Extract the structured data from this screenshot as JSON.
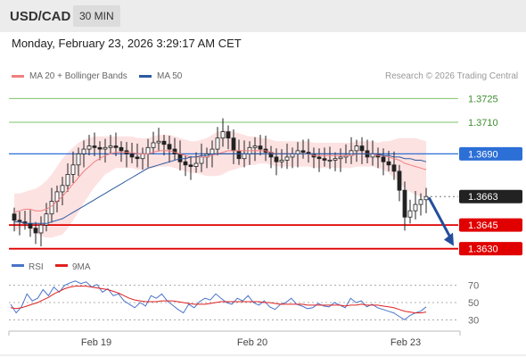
{
  "header": {
    "symbol": "USD/CAD",
    "timeframe": "30 MIN"
  },
  "datetime": "Monday, February 23, 2026 3:29:17 AM CET",
  "legend": {
    "ma20": {
      "label": "MA 20 + Bollinger Bands",
      "color": "#f08080"
    },
    "ma50": {
      "label": "MA 50",
      "color": "#2c5aa0"
    }
  },
  "credit": "Research © 2026 Trading Central",
  "chart_data": {
    "type": "candlestick",
    "price_ylim": [
      1.3627,
      1.3732
    ],
    "levels": [
      {
        "value": 1.3725,
        "label": "1.3725",
        "kind": "resistance-green"
      },
      {
        "value": 1.371,
        "label": "1.3710",
        "kind": "resistance-green"
      },
      {
        "value": 1.369,
        "label": "1.3690",
        "kind": "pivot-blue"
      },
      {
        "value": 1.3663,
        "label": "1.3663",
        "kind": "current"
      },
      {
        "value": 1.3645,
        "label": "1.3645",
        "kind": "support-red"
      },
      {
        "value": 1.363,
        "label": "1.3630",
        "kind": "support-red"
      }
    ],
    "arrow": {
      "from": 1.3663,
      "to": 1.363
    },
    "x_ticks": [
      "Feb 19",
      "Feb 20",
      "Feb 23"
    ],
    "closes": [
      1.3648,
      1.3647,
      1.3646,
      1.3643,
      1.364,
      1.3645,
      1.3652,
      1.366,
      1.3666,
      1.367,
      1.3677,
      1.3683,
      1.369,
      1.3693,
      1.3695,
      1.3694,
      1.3693,
      1.3694,
      1.3695,
      1.3694,
      1.3692,
      1.369,
      1.3688,
      1.3687,
      1.369,
      1.3694,
      1.3697,
      1.3698,
      1.3696,
      1.3693,
      1.369,
      1.3685,
      1.3683,
      1.3682,
      1.3684,
      1.3688,
      1.369,
      1.3693,
      1.37,
      1.3704,
      1.37,
      1.3692,
      1.3687,
      1.369,
      1.3694,
      1.3695,
      1.3693,
      1.3691,
      1.3688,
      1.3685,
      1.3686,
      1.3688,
      1.369,
      1.3692,
      1.3691,
      1.369,
      1.3688,
      1.3687,
      1.3686,
      1.3686,
      1.3687,
      1.3688,
      1.3689,
      1.3692,
      1.3695,
      1.3692,
      1.3688,
      1.369,
      1.3688,
      1.3685,
      1.3683,
      1.3679,
      1.3667,
      1.365,
      1.3654,
      1.3658,
      1.3661,
      1.3663
    ],
    "ma20": [
      1.3653,
      1.3654,
      1.3655,
      1.3655,
      1.3654,
      1.3654,
      1.3655,
      1.3657,
      1.366,
      1.3663,
      1.3667,
      1.3671,
      1.3675,
      1.3679,
      1.3682,
      1.3685,
      1.3687,
      1.3689,
      1.369,
      1.3691,
      1.3691,
      1.3691,
      1.3691,
      1.369,
      1.369,
      1.369,
      1.3691,
      1.3692,
      1.3692,
      1.3692,
      1.3691,
      1.369,
      1.3689,
      1.3688,
      1.3688,
      1.3688,
      1.3688,
      1.3689,
      1.369,
      1.3691,
      1.3692,
      1.3692,
      1.3692,
      1.3692,
      1.3692,
      1.3692,
      1.3692,
      1.3692,
      1.3691,
      1.369,
      1.369,
      1.369,
      1.369,
      1.369,
      1.369,
      1.369,
      1.3689,
      1.3689,
      1.3689,
      1.3689,
      1.3689,
      1.3689,
      1.3689,
      1.3689,
      1.369,
      1.369,
      1.369,
      1.369,
      1.3689,
      1.3689,
      1.3688,
      1.3687,
      1.3686,
      1.3684,
      1.3683,
      1.3682,
      1.3681,
      1.368
    ],
    "ma50": [
      1.3647,
      1.3647,
      1.3646,
      1.3646,
      1.3646,
      1.3646,
      1.3646,
      1.3647,
      1.3648,
      1.3649,
      1.3651,
      1.3653,
      1.3655,
      1.3657,
      1.3659,
      1.3661,
      1.3663,
      1.3665,
      1.3667,
      1.3669,
      1.3671,
      1.3673,
      1.3675,
      1.3677,
      1.3679,
      1.3681,
      1.3682,
      1.3683,
      1.3684,
      1.3685,
      1.3686,
      1.3687,
      1.3687,
      1.3688,
      1.3688,
      1.3689,
      1.3689,
      1.369,
      1.369,
      1.369,
      1.369,
      1.369,
      1.369,
      1.369,
      1.369,
      1.369,
      1.369,
      1.369,
      1.369,
      1.369,
      1.369,
      1.369,
      1.369,
      1.369,
      1.369,
      1.369,
      1.369,
      1.369,
      1.369,
      1.369,
      1.369,
      1.369,
      1.369,
      1.369,
      1.369,
      1.369,
      1.369,
      1.369,
      1.369,
      1.3689,
      1.3689,
      1.3688,
      1.3688,
      1.3687,
      1.3687,
      1.3686,
      1.3686,
      1.3685
    ],
    "band_width": [
      0.0012,
      0.0011,
      0.0011,
      0.0012,
      0.0014,
      0.0016,
      0.0018,
      0.002,
      0.0022,
      0.0024,
      0.0024,
      0.0023,
      0.0022,
      0.002,
      0.0018,
      0.0016,
      0.0014,
      0.0012,
      0.0011,
      0.001,
      0.001,
      0.001,
      0.001,
      0.001,
      0.001,
      0.001,
      0.001,
      0.001,
      0.001,
      0.001,
      0.001,
      0.001,
      0.001,
      0.001,
      0.001,
      0.0011,
      0.0012,
      0.0013,
      0.0014,
      0.0014,
      0.0013,
      0.0012,
      0.0011,
      0.001,
      0.0009,
      0.0009,
      0.0008,
      0.0008,
      0.0008,
      0.0008,
      0.0008,
      0.0008,
      0.0008,
      0.0008,
      0.0008,
      0.0008,
      0.0008,
      0.0008,
      0.0008,
      0.0008,
      0.0008,
      0.0008,
      0.0008,
      0.0008,
      0.0008,
      0.0008,
      0.0008,
      0.0008,
      0.0008,
      0.0009,
      0.001,
      0.0012,
      0.0014,
      0.0016,
      0.0017,
      0.0018,
      0.0018,
      0.0018
    ],
    "rsi": {
      "legend": [
        {
          "label": "RSI",
          "color": "#4a74c9"
        },
        {
          "label": "9MA",
          "color": "#e02020"
        }
      ],
      "levels": [
        70,
        50,
        30
      ],
      "ylim": [
        20,
        80
      ],
      "rsi_values": [
        48,
        38,
        45,
        60,
        52,
        55,
        65,
        58,
        68,
        62,
        70,
        73,
        75,
        72,
        74,
        68,
        71,
        62,
        66,
        58,
        60,
        52,
        48,
        44,
        50,
        46,
        58,
        55,
        60,
        52,
        47,
        42,
        38,
        48,
        44,
        51,
        55,
        53,
        60,
        55,
        50,
        48,
        55,
        52,
        58,
        50,
        47,
        52,
        45,
        42,
        48,
        50,
        55,
        48,
        46,
        43,
        44,
        49,
        46,
        45,
        50,
        47,
        44,
        55,
        50,
        52,
        45,
        48,
        44,
        42,
        40,
        38,
        34,
        30,
        35,
        38,
        40,
        45
      ],
      "ma_values": [
        44,
        43,
        44,
        46,
        48,
        50,
        53,
        56,
        60,
        63,
        66,
        68,
        69,
        69,
        69,
        68,
        67,
        66,
        65,
        63,
        61,
        58,
        55,
        53,
        52,
        51,
        51,
        51,
        52,
        52,
        52,
        51,
        50,
        49,
        48,
        48,
        48,
        49,
        50,
        51,
        51,
        51,
        51,
        51,
        51,
        51,
        51,
        50,
        50,
        49,
        48,
        48,
        48,
        48,
        48,
        47,
        47,
        47,
        47,
        47,
        47,
        47,
        46,
        47,
        47,
        48,
        47,
        47,
        47,
        46,
        45,
        44,
        42,
        40,
        39,
        38,
        38,
        39
      ]
    }
  }
}
